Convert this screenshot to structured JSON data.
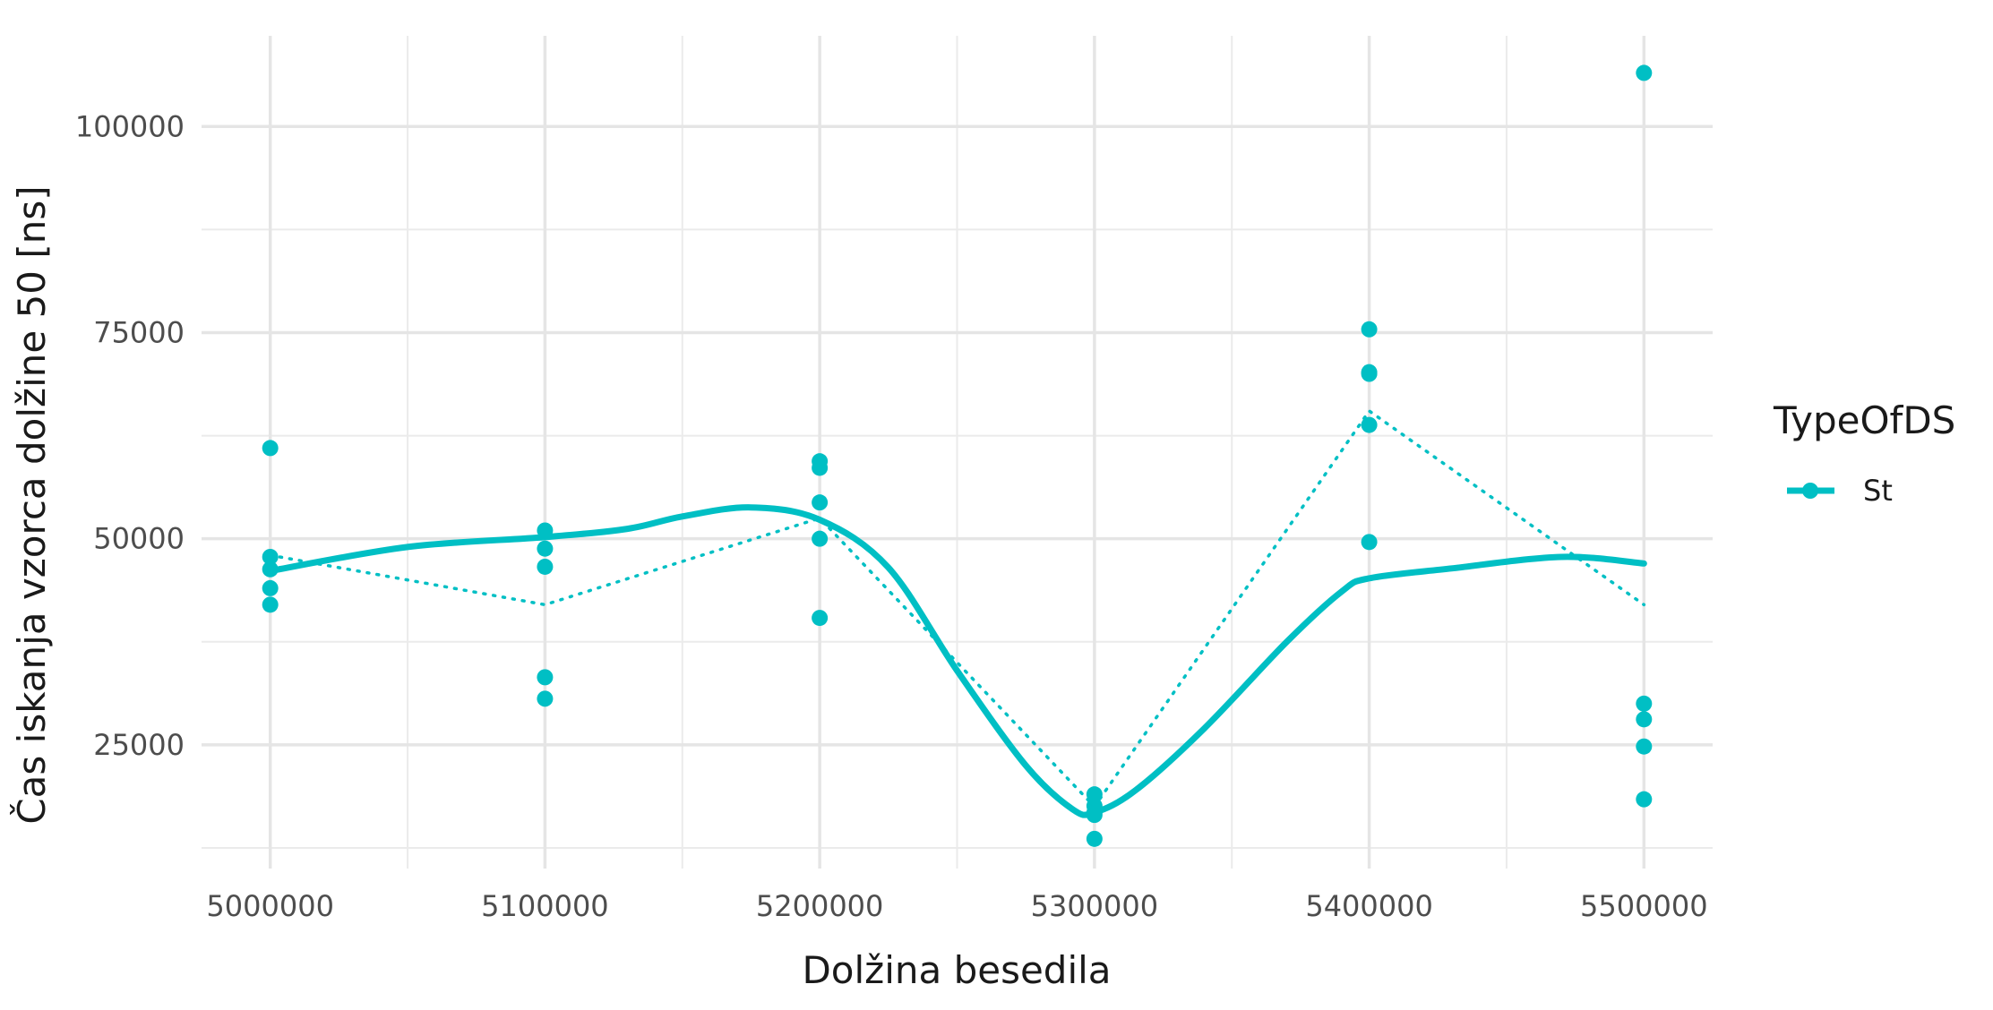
{
  "chart_data": {
    "type": "scatter",
    "xlabel": "Dolžina besedila",
    "ylabel": "Čas iskanja vzorca dolžine 50 [ns]",
    "xlim": [
      4975000,
      5525000
    ],
    "ylim": [
      10000,
      111000
    ],
    "x_ticks": [
      5000000,
      5100000,
      5200000,
      5300000,
      5400000,
      5500000
    ],
    "x_tick_labels": [
      "5000000",
      "5100000",
      "5200000",
      "5300000",
      "5400000",
      "5500000"
    ],
    "x_minor_ticks": [
      5050000,
      5150000,
      5250000,
      5350000,
      5450000
    ],
    "y_ticks": [
      25000,
      50000,
      75000,
      100000
    ],
    "y_tick_labels": [
      "25000",
      "50000",
      "75000",
      "100000"
    ],
    "y_minor_ticks": [
      12500,
      37500,
      62500,
      87500
    ],
    "grid": true,
    "legend": {
      "title": "TypeOfDS",
      "position": "right"
    },
    "series": [
      {
        "name": "St",
        "color": "#00BFC4",
        "points": [
          [
            5000000,
            61000
          ],
          [
            5000000,
            47800
          ],
          [
            5000000,
            46300
          ],
          [
            5000000,
            44000
          ],
          [
            5000000,
            42000
          ],
          [
            5100000,
            51000
          ],
          [
            5100000,
            48800
          ],
          [
            5100000,
            46600
          ],
          [
            5100000,
            33200
          ],
          [
            5100000,
            30600
          ],
          [
            5200000,
            59400
          ],
          [
            5200000,
            58600
          ],
          [
            5200000,
            54400
          ],
          [
            5200000,
            50000
          ],
          [
            5200000,
            40400
          ],
          [
            5300000,
            19000
          ],
          [
            5300000,
            17600
          ],
          [
            5300000,
            16800
          ],
          [
            5300000,
            16500
          ],
          [
            5300000,
            13600
          ],
          [
            5400000,
            75400
          ],
          [
            5400000,
            70200
          ],
          [
            5400000,
            70000
          ],
          [
            5400000,
            63800
          ],
          [
            5400000,
            49600
          ],
          [
            5500000,
            106500
          ],
          [
            5500000,
            30000
          ],
          [
            5500000,
            28100
          ],
          [
            5500000,
            24800
          ],
          [
            5500000,
            18400
          ]
        ],
        "mean_line": [
          [
            5000000,
            48000
          ],
          [
            5100000,
            42000
          ],
          [
            5200000,
            52500
          ],
          [
            5300000,
            17500
          ],
          [
            5400000,
            65500
          ],
          [
            5500000,
            42000
          ]
        ],
        "smooth_line": [
          [
            5000000,
            46100
          ],
          [
            5050000,
            49000
          ],
          [
            5100000,
            50200
          ],
          [
            5130000,
            51200
          ],
          [
            5150000,
            52700
          ],
          [
            5175000,
            53800
          ],
          [
            5200000,
            52300
          ],
          [
            5225000,
            46500
          ],
          [
            5250000,
            34000
          ],
          [
            5275000,
            22500
          ],
          [
            5292000,
            17200
          ],
          [
            5300000,
            16800
          ],
          [
            5315000,
            19500
          ],
          [
            5340000,
            27000
          ],
          [
            5370000,
            37500
          ],
          [
            5390000,
            43600
          ],
          [
            5400000,
            45200
          ],
          [
            5430000,
            46400
          ],
          [
            5470000,
            47800
          ],
          [
            5500000,
            47000
          ]
        ]
      }
    ]
  }
}
